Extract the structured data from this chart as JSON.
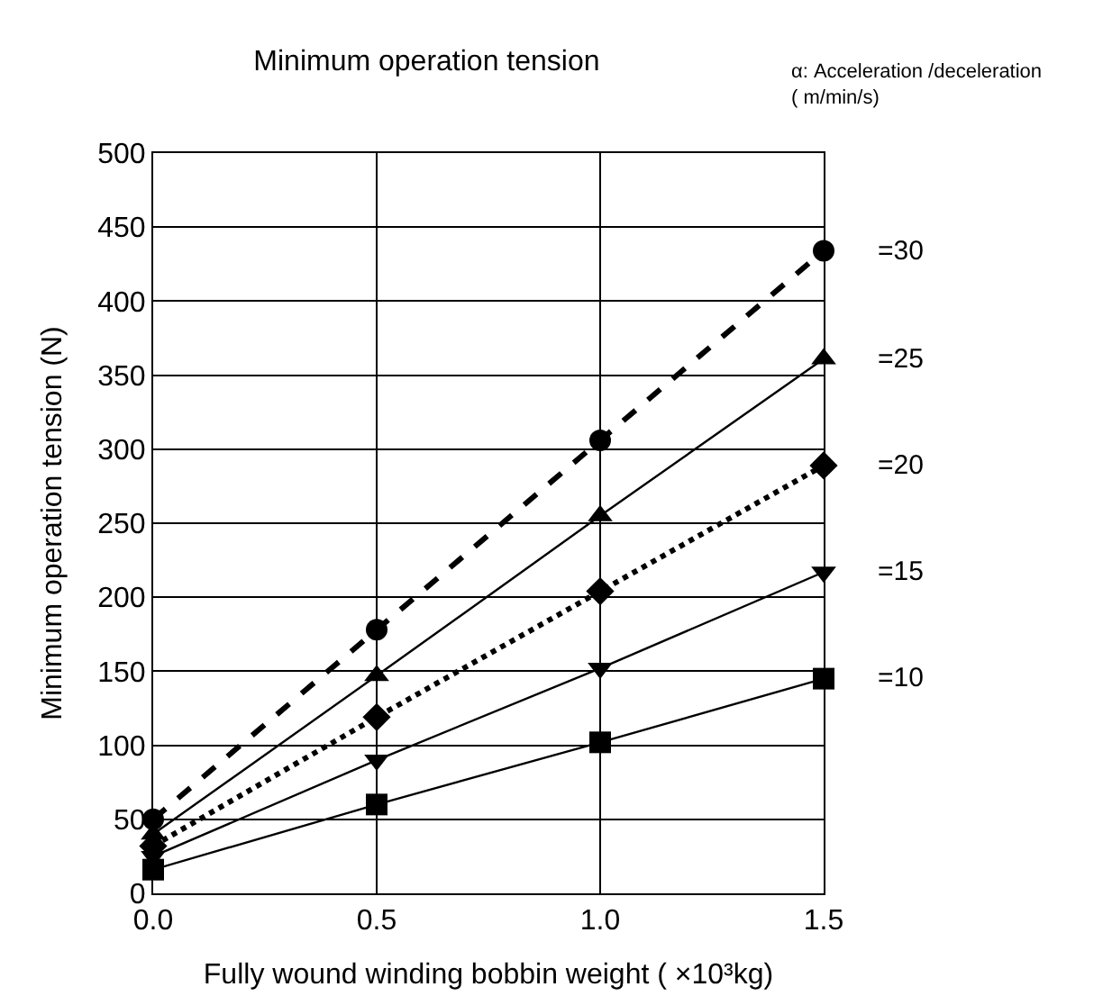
{
  "chart_data": {
    "type": "line",
    "title": "Minimum operation tension",
    "xlabel": "Fully wound winding bobbin weight ( ×10³kg)",
    "ylabel": "Minimum operation tension (N)",
    "legend_title": "α: Acceleration /deceleration\n( m/min/s)",
    "x": [
      0.0,
      0.5,
      1.0,
      1.5
    ],
    "xlim": [
      0.0,
      1.5
    ],
    "xticks": [
      {
        "value": 0.0,
        "label": "0.0"
      },
      {
        "value": 0.5,
        "label": "0.5"
      },
      {
        "value": 1.0,
        "label": "1.0"
      },
      {
        "value": 1.5,
        "label": "1.5"
      }
    ],
    "ylim": [
      0,
      500
    ],
    "yticks": [
      0,
      50,
      100,
      150,
      200,
      250,
      300,
      350,
      400,
      450,
      500
    ],
    "grid": true,
    "legend": false,
    "series": [
      {
        "name": "=30",
        "color": "#000000",
        "marker": "circle",
        "line_style": "dashed",
        "values": [
          50,
          178,
          306,
          434
        ]
      },
      {
        "name": "=25",
        "color": "#000000",
        "marker": "triangle",
        "line_style": "solid",
        "values": [
          40,
          147,
          255,
          361
        ]
      },
      {
        "name": "=20",
        "color": "#000000",
        "marker": "diamond",
        "line_style": "dotted",
        "values": [
          32,
          119,
          204,
          289
        ]
      },
      {
        "name": "=15",
        "color": "#000000",
        "marker": "triangle-down",
        "line_style": "solid",
        "values": [
          25,
          90,
          152,
          217
        ]
      },
      {
        "name": "=10",
        "color": "#000000",
        "marker": "square",
        "line_style": "solid",
        "values": [
          16,
          60,
          102,
          145
        ]
      }
    ]
  }
}
